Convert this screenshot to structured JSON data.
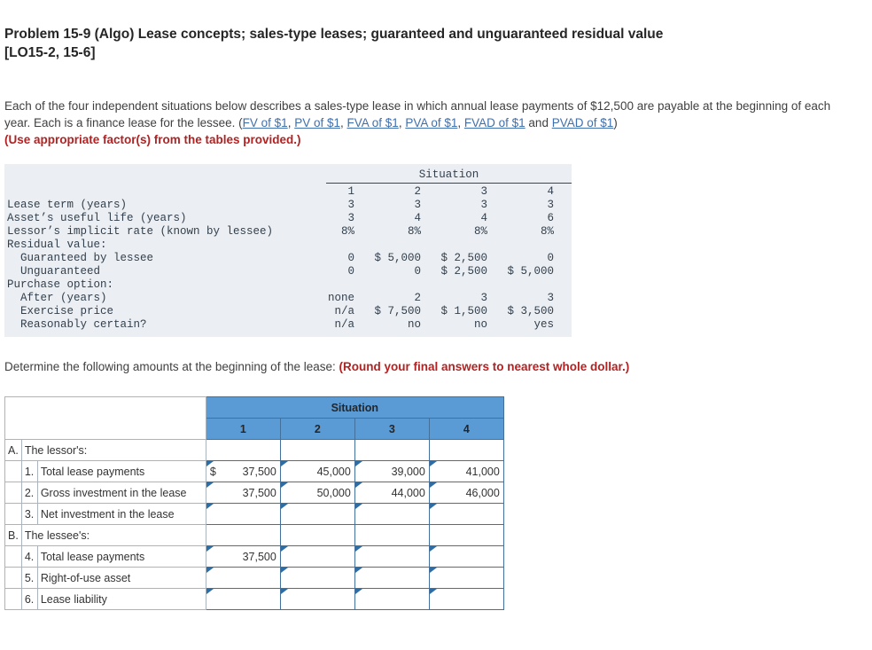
{
  "colors": {
    "body-text": "#404040",
    "link": "#3f6fae",
    "note-red": "#b22222",
    "facts-bg": "#ebeef2",
    "facts-text": "#33404d",
    "header-blue": "#5b9bd5",
    "header-text": "#262626",
    "value-border": "#41719c",
    "label-border": "#aab4bf",
    "marker-blue": "#2e6da4"
  },
  "title": {
    "line1": "Problem 15-9 (Algo) Lease concepts; sales-type leases; guaranteed and unguaranteed residual value",
    "line2": "[LO15-2, 15-6]"
  },
  "intro": {
    "segments": [
      {
        "text": "Each of the four independent situations below describes a sales-type lease in which annual lease payments of $12,500 are payable at the beginning of each year. Each is a finance lease for the lessee. (",
        "link": false
      },
      {
        "text": "FV of $1",
        "link": true
      },
      {
        "text": ", ",
        "link": false
      },
      {
        "text": "PV of $1",
        "link": true
      },
      {
        "text": ", ",
        "link": false
      },
      {
        "text": "FVA of $1",
        "link": true
      },
      {
        "text": ", ",
        "link": false
      },
      {
        "text": "PVA of $1",
        "link": true
      },
      {
        "text": ", ",
        "link": false
      },
      {
        "text": "FVAD of $1",
        "link": true
      },
      {
        "text": " and ",
        "link": false
      },
      {
        "text": "PVAD of $1",
        "link": true
      },
      {
        "text": ")",
        "link": false
      }
    ],
    "red_note": "(Use appropriate factor(s) from the tables provided.)"
  },
  "facts_table": {
    "header": "Situation",
    "col_headers": [
      "1",
      "2",
      "3",
      "4"
    ],
    "rows": [
      {
        "label": "Lease term (years)",
        "indent": 0,
        "values": [
          "3",
          "3",
          "3",
          "3"
        ]
      },
      {
        "label": "Asset’s useful life (years)",
        "indent": 0,
        "values": [
          "3",
          "4",
          "4",
          "6"
        ]
      },
      {
        "label": "Lessor’s implicit rate (known by lessee)",
        "indent": 0,
        "values": [
          "8%",
          "8%",
          "8%",
          "8%"
        ]
      },
      {
        "label": "Residual value:",
        "indent": 0,
        "values": [
          "",
          "",
          "",
          ""
        ]
      },
      {
        "label": "Guaranteed by lessee",
        "indent": 1,
        "values": [
          "0",
          "$ 5,000",
          "$ 2,500",
          "0"
        ]
      },
      {
        "label": "Unguaranteed",
        "indent": 1,
        "values": [
          "0",
          "0",
          "$ 2,500",
          "$ 5,000"
        ]
      },
      {
        "label": "Purchase option:",
        "indent": 0,
        "values": [
          "",
          "",
          "",
          ""
        ]
      },
      {
        "label": "After (years)",
        "indent": 1,
        "values": [
          "none",
          "2",
          "3",
          "3"
        ]
      },
      {
        "label": "Exercise price",
        "indent": 1,
        "values": [
          "n/a",
          "$ 7,500",
          "$ 1,500",
          "$ 3,500"
        ]
      },
      {
        "label": "Reasonably certain?",
        "indent": 1,
        "values": [
          "n/a",
          "no",
          "no",
          "yes"
        ]
      }
    ]
  },
  "determine": {
    "text": "Determine the following amounts at the beginning of the lease: ",
    "red_note": "(Round your final answers to nearest whole dollar.)"
  },
  "answer_table": {
    "header": "Situation",
    "col_headers": [
      "1",
      "2",
      "3",
      "4"
    ],
    "rows": [
      {
        "type": "section",
        "letter": "A.",
        "label": "The lessor's:"
      },
      {
        "type": "input",
        "num": "1.",
        "label": "Total lease payments",
        "prefixes": [
          "$",
          "",
          "",
          ""
        ],
        "values": [
          "37,500",
          "45,000",
          "39,000",
          "41,000"
        ]
      },
      {
        "type": "input",
        "num": "2.",
        "label": "Gross investment in the lease",
        "prefixes": [
          "",
          "",
          "",
          ""
        ],
        "values": [
          "37,500",
          "50,000",
          "44,000",
          "46,000"
        ]
      },
      {
        "type": "input",
        "num": "3.",
        "label": "Net investment in the lease",
        "prefixes": [
          "",
          "",
          "",
          ""
        ],
        "values": [
          "",
          "",
          "",
          ""
        ]
      },
      {
        "type": "section",
        "letter": "B.",
        "label": "The lessee's:"
      },
      {
        "type": "input",
        "num": "4.",
        "label": "Total lease payments",
        "prefixes": [
          "",
          "",
          "",
          ""
        ],
        "values": [
          "37,500",
          "",
          "",
          ""
        ]
      },
      {
        "type": "input",
        "num": "5.",
        "label": "Right-of-use asset",
        "prefixes": [
          "",
          "",
          "",
          ""
        ],
        "values": [
          "",
          "",
          "",
          ""
        ]
      },
      {
        "type": "input",
        "num": "6.",
        "label": "Lease liability",
        "prefixes": [
          "",
          "",
          "",
          ""
        ],
        "values": [
          "",
          "",
          "",
          ""
        ]
      }
    ]
  }
}
